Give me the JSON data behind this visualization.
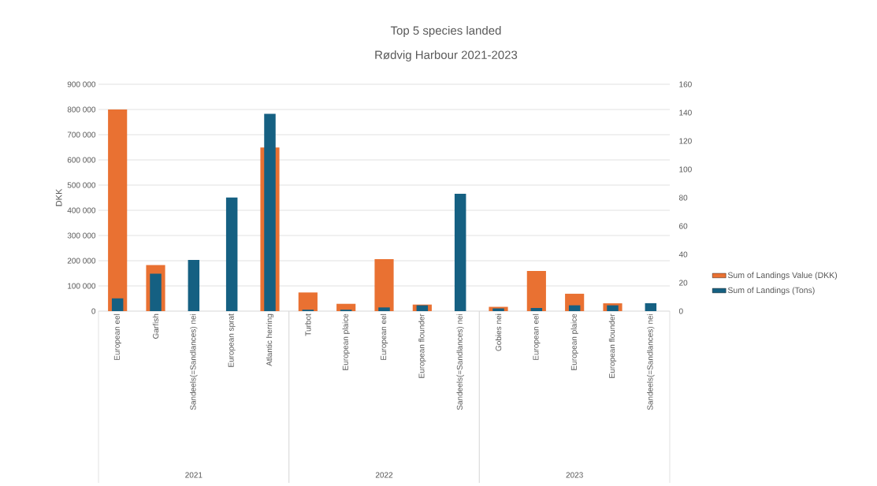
{
  "chart_data": {
    "type": "bar",
    "title": "Top 5 species landed",
    "subtitle": "Rødvig Harbour 2021-2023",
    "ylabel": "DKK",
    "categories": [
      "European eel",
      "Garfish",
      "Sandeels(=Sandlances) nei",
      "European sprat",
      "Atlantic herring",
      "Turbot",
      "European plaice",
      "European eel",
      "European flounder",
      "Sandeels(=Sandlances) nei",
      "Gobies nei",
      "European eel",
      "European plaice",
      "European flounder",
      "Sandeels(=Sandlances) nei"
    ],
    "series": [
      {
        "name": "Sum of Landings Value (DKK)",
        "color": "#e97132",
        "values": [
          800000,
          183000,
          null,
          null,
          649000,
          74000,
          29000,
          206000,
          26000,
          null,
          17000,
          159000,
          69000,
          31000,
          null
        ]
      },
      {
        "name": "Sum of Landings (Tons)",
        "color": "#156082",
        "axis": "y2",
        "values": [
          9,
          26.4,
          36.1,
          80.2,
          139.2,
          1,
          1,
          2.6,
          4.1,
          82.8,
          1.9,
          2.2,
          4.1,
          4.1,
          5.6
        ]
      }
    ],
    "ylim": [
      0,
      900000
    ],
    "yticks": [
      {
        "value": 0,
        "label": "0"
      },
      {
        "value": 100000,
        "label": "100 000"
      },
      {
        "value": 200000,
        "label": "200 000"
      },
      {
        "value": 300000,
        "label": "300 000"
      },
      {
        "value": 400000,
        "label": "400 000"
      },
      {
        "value": 500000,
        "label": "500 000"
      },
      {
        "value": 600000,
        "label": "600 000"
      },
      {
        "value": 700000,
        "label": "700 000"
      },
      {
        "value": 800000,
        "label": "800 000"
      },
      {
        "value": 900000,
        "label": "900 000"
      }
    ],
    "y2lim": [
      0,
      160
    ],
    "y2ticks": [
      0,
      20,
      40,
      60,
      80,
      100,
      120,
      140,
      160
    ],
    "annotations": [
      "2021",
      "2022",
      "2023"
    ],
    "grid": "y",
    "legend": "right"
  }
}
